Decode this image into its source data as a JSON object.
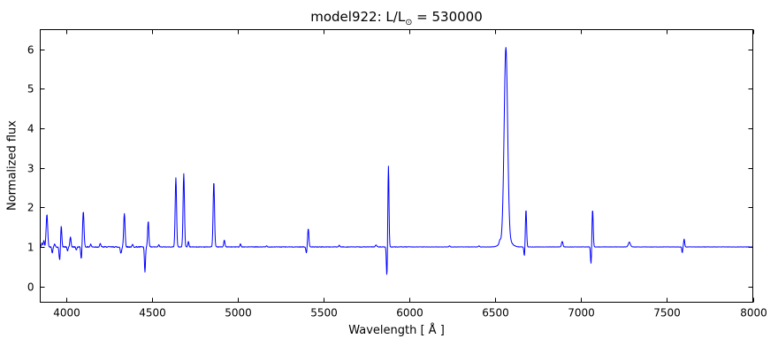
{
  "figure": {
    "title": {
      "prefix": "model922: ",
      "math": "L/L",
      "sub": "⊙",
      "suffix": " = 530000"
    },
    "xlabel": "Wavelength [ Å ]",
    "ylabel": "Normalized flux"
  },
  "chart_data": {
    "type": "line",
    "title": "model922: L/L⊙ = 530000",
    "xlabel": "Wavelength [ Å ]",
    "ylabel": "Normalized flux",
    "xlim": [
      3850,
      8000
    ],
    "ylim": [
      -0.4,
      6.5
    ],
    "x_ticks": [
      4000,
      4500,
      5000,
      5500,
      6000,
      6500,
      7000,
      7500,
      8000
    ],
    "y_ticks": [
      0,
      1,
      2,
      3,
      4,
      5,
      6
    ],
    "legend": null,
    "grid": false,
    "line_color": "#0000ff",
    "continuum": 1.0,
    "sample_step": 2,
    "noise": {
      "seed": 42,
      "bands": [
        {
          "max": 4500,
          "amp": 0.013
        },
        {
          "max": 6000,
          "amp": 0.007
        },
        {
          "max": 9000,
          "amp": 0.004
        }
      ]
    },
    "features": [
      {
        "c": 3860,
        "a": 0.1,
        "s": 3.0
      },
      {
        "c": 3871,
        "a": 0.16,
        "s": 3.0
      },
      {
        "c": 3889,
        "a": 0.82,
        "s": 4.5
      },
      {
        "c": 3920,
        "a": -0.15,
        "s": 3.0
      },
      {
        "c": 3934,
        "a": 0.08,
        "s": 3.0
      },
      {
        "c": 3964,
        "a": -0.36,
        "s": 4.0
      },
      {
        "c": 3972,
        "a": 0.58,
        "s": 3.5
      },
      {
        "c": 4009,
        "a": -0.1,
        "s": 3.0
      },
      {
        "c": 4026,
        "a": 0.24,
        "s": 3.5
      },
      {
        "c": 4060,
        "a": -0.08,
        "s": 3.0
      },
      {
        "c": 4089,
        "a": -0.3,
        "s": 3.0
      },
      {
        "c": 4101,
        "a": 0.9,
        "s": 4.0
      },
      {
        "c": 4144,
        "a": 0.07,
        "s": 3.0
      },
      {
        "c": 4200,
        "a": 0.09,
        "s": 3.0
      },
      {
        "c": 4320,
        "a": -0.16,
        "s": 4.0
      },
      {
        "c": 4340,
        "a": 0.85,
        "s": 4.0
      },
      {
        "c": 4388,
        "a": 0.06,
        "s": 3.0
      },
      {
        "c": 4460,
        "a": -0.65,
        "s": 3.0
      },
      {
        "c": 4479,
        "a": 0.65,
        "s": 3.5
      },
      {
        "c": 4541,
        "a": 0.06,
        "s": 3.0
      },
      {
        "c": 4640,
        "a": 1.75,
        "s": 4.0
      },
      {
        "c": 4686,
        "a": 1.85,
        "s": 4.0
      },
      {
        "c": 4713,
        "a": 0.14,
        "s": 3.0
      },
      {
        "c": 4861,
        "a": 1.65,
        "s": 4.0
      },
      {
        "c": 4922,
        "a": 0.17,
        "s": 3.5
      },
      {
        "c": 5016,
        "a": 0.08,
        "s": 3.0
      },
      {
        "c": 5169,
        "a": 0.03,
        "s": 3.0
      },
      {
        "c": 5400,
        "a": -0.15,
        "s": 3.0
      },
      {
        "c": 5411,
        "a": 0.47,
        "s": 3.5
      },
      {
        "c": 5592,
        "a": 0.04,
        "s": 3.0
      },
      {
        "c": 5806,
        "a": 0.05,
        "s": 4.0
      },
      {
        "c": 5869,
        "a": -0.75,
        "s": 3.0
      },
      {
        "c": 5878,
        "a": 2.05,
        "s": 3.2
      },
      {
        "c": 6234,
        "a": 0.03,
        "s": 3.0
      },
      {
        "c": 6406,
        "a": 0.03,
        "s": 3.0
      },
      {
        "c": 6527,
        "a": 0.08,
        "s": 4.0
      },
      {
        "c": 6562,
        "a": 4.8,
        "s": 10.0
      },
      {
        "c": 6562,
        "a": 0.25,
        "s": 25.0
      },
      {
        "c": 6670,
        "a": -0.25,
        "s": 3.0
      },
      {
        "c": 6679,
        "a": 0.95,
        "s": 3.5
      },
      {
        "c": 6890,
        "a": 0.14,
        "s": 4.0
      },
      {
        "c": 7058,
        "a": -0.45,
        "s": 3.0
      },
      {
        "c": 7067,
        "a": 0.95,
        "s": 3.5
      },
      {
        "c": 7281,
        "a": 0.12,
        "s": 6.0
      },
      {
        "c": 7589,
        "a": -0.15,
        "s": 2.5
      },
      {
        "c": 7600,
        "a": 0.2,
        "s": 3.0
      }
    ]
  }
}
